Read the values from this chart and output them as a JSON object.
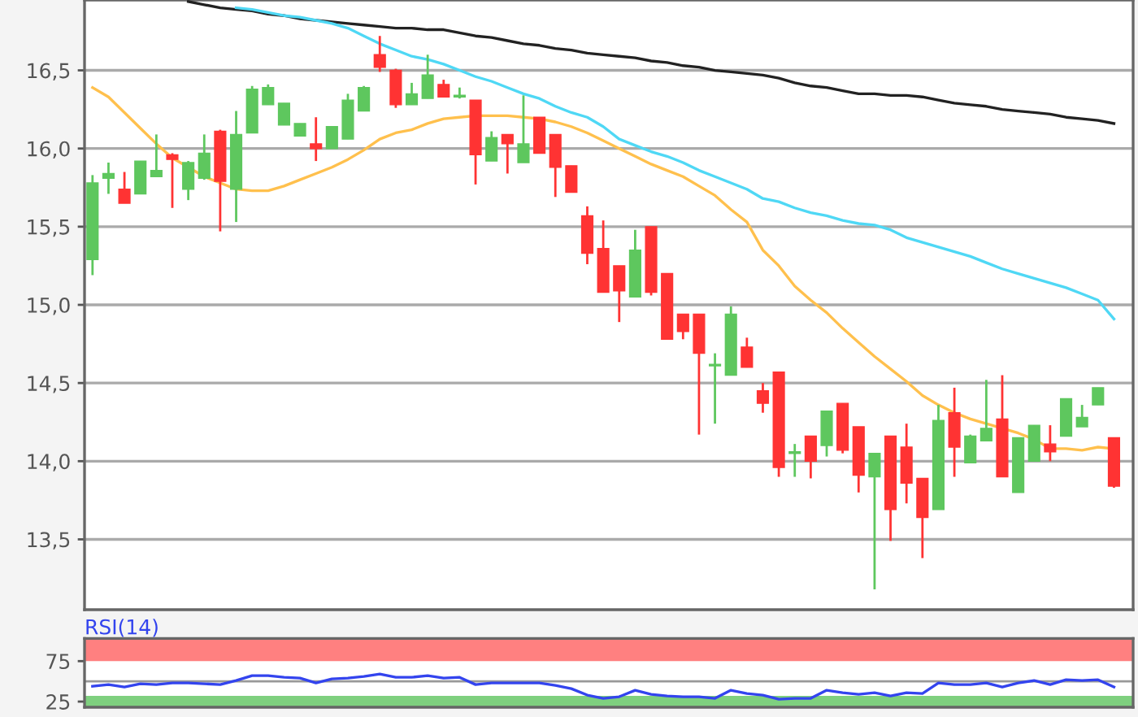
{
  "chart_data": [
    {
      "type": "candlestick",
      "categories": [
        null,
        null,
        null,
        null,
        null,
        null,
        null,
        null,
        null,
        null,
        null,
        null,
        null,
        null,
        null,
        null,
        null,
        null,
        null,
        null,
        null,
        null,
        null,
        null,
        null,
        null,
        null,
        null,
        null,
        null,
        null,
        null,
        null,
        null,
        null,
        null,
        null,
        null,
        null,
        null,
        null,
        null,
        null,
        null,
        null,
        null,
        null,
        null,
        null,
        null,
        null,
        null,
        null,
        null,
        null,
        null,
        null,
        null,
        null,
        null,
        null,
        null,
        null,
        null,
        null
      ],
      "ylim": [
        13.05,
        16.95
      ],
      "yticks": [
        {
          "value": 13.5,
          "label": "13,5"
        },
        {
          "value": 14.0,
          "label": "14,0"
        },
        {
          "value": 14.5,
          "label": "14,5"
        },
        {
          "value": 15.0,
          "label": "15,0"
        },
        {
          "value": 15.5,
          "label": "15,5"
        },
        {
          "value": 16.0,
          "label": "16,0"
        },
        {
          "value": 16.5,
          "label": "16,5"
        }
      ],
      "grid": "y",
      "tick_labels": "y",
      "series": [
        {
          "type": "line",
          "color": "#222222",
          "values": [
            null,
            null,
            null,
            null,
            null,
            null,
            16.94,
            16.92,
            16.9,
            16.89,
            16.88,
            16.86,
            16.85,
            16.83,
            16.82,
            16.81,
            16.8,
            16.79,
            16.78,
            16.77,
            16.77,
            16.76,
            16.76,
            16.74,
            16.72,
            16.71,
            16.69,
            16.67,
            16.66,
            16.64,
            16.63,
            16.61,
            16.6,
            16.59,
            16.58,
            16.56,
            16.55,
            16.53,
            16.52,
            16.5,
            16.49,
            16.48,
            16.47,
            16.45,
            16.42,
            16.4,
            16.39,
            16.37,
            16.35,
            16.35,
            16.34,
            16.34,
            16.33,
            16.31,
            16.29,
            16.28,
            16.27,
            16.25,
            16.24,
            16.23,
            16.22,
            16.2,
            16.19,
            16.18,
            16.16
          ]
        },
        {
          "type": "line",
          "color": "#4fd8f5",
          "values": [
            null,
            null,
            null,
            null,
            null,
            null,
            null,
            null,
            null,
            16.9,
            16.89,
            16.87,
            16.85,
            16.84,
            16.82,
            16.8,
            16.77,
            16.72,
            16.67,
            16.63,
            16.59,
            16.57,
            16.54,
            16.5,
            16.46,
            16.43,
            16.39,
            16.35,
            16.32,
            16.27,
            16.23,
            16.2,
            16.14,
            16.06,
            16.02,
            15.98,
            15.95,
            15.91,
            15.86,
            15.82,
            15.78,
            15.74,
            15.68,
            15.66,
            15.62,
            15.59,
            15.57,
            15.54,
            15.52,
            15.51,
            15.48,
            15.43,
            15.4,
            15.37,
            15.34,
            15.31,
            15.27,
            15.23,
            15.2,
            15.17,
            15.14,
            15.11,
            15.07,
            15.03,
            14.91
          ]
        },
        {
          "type": "line",
          "color": "#ffc04d",
          "values": [
            16.39,
            16.33,
            16.23,
            16.13,
            16.03,
            15.94,
            15.88,
            15.82,
            15.78,
            15.74,
            15.73,
            15.73,
            15.76,
            15.8,
            15.84,
            15.88,
            15.93,
            15.99,
            16.06,
            16.1,
            16.12,
            16.16,
            16.19,
            16.2,
            16.21,
            16.21,
            16.21,
            16.2,
            16.19,
            16.17,
            16.14,
            16.1,
            16.05,
            16.0,
            15.95,
            15.9,
            15.86,
            15.82,
            15.76,
            15.7,
            15.61,
            15.53,
            15.35,
            15.25,
            15.12,
            15.03,
            14.95,
            14.85,
            14.76,
            14.67,
            14.59,
            14.51,
            14.42,
            14.36,
            14.31,
            14.27,
            14.24,
            14.21,
            14.18,
            14.14,
            14.08,
            14.08,
            14.07,
            14.09,
            14.08
          ]
        },
        {
          "ohlc": [
            [
              15.29,
              15.83,
              15.19,
              15.78
            ],
            [
              15.81,
              15.91,
              15.71,
              15.84
            ],
            [
              15.74,
              15.85,
              15.65,
              15.65
            ],
            [
              15.71,
              15.92,
              15.71,
              15.92
            ],
            [
              15.82,
              16.09,
              15.82,
              15.86
            ],
            [
              15.96,
              15.97,
              15.62,
              15.93
            ],
            [
              15.74,
              15.92,
              15.67,
              15.91
            ],
            [
              15.81,
              16.09,
              15.8,
              15.97
            ],
            [
              16.11,
              16.12,
              15.47,
              15.79
            ],
            [
              15.74,
              16.24,
              15.53,
              16.09
            ],
            [
              16.1,
              16.4,
              16.1,
              16.38
            ],
            [
              16.28,
              16.41,
              16.28,
              16.39
            ],
            [
              16.15,
              16.29,
              16.15,
              16.29
            ],
            [
              16.08,
              16.16,
              16.08,
              16.16
            ],
            [
              16.03,
              16.2,
              15.92,
              16.0
            ],
            [
              16.0,
              16.14,
              16.0,
              16.14
            ],
            [
              16.06,
              16.35,
              16.06,
              16.31
            ],
            [
              16.24,
              16.4,
              16.24,
              16.39
            ],
            [
              16.6,
              16.72,
              16.49,
              16.52
            ],
            [
              16.5,
              16.51,
              16.26,
              16.28
            ],
            [
              16.28,
              16.42,
              16.28,
              16.35
            ],
            [
              16.32,
              16.6,
              16.32,
              16.47
            ],
            [
              16.41,
              16.44,
              16.33,
              16.33
            ],
            [
              16.33,
              16.39,
              16.32,
              16.34
            ],
            [
              16.31,
              16.31,
              15.77,
              15.96
            ],
            [
              15.92,
              16.11,
              15.92,
              16.07
            ],
            [
              16.09,
              16.09,
              15.84,
              16.03
            ],
            [
              15.91,
              16.34,
              15.91,
              16.03
            ],
            [
              16.2,
              16.2,
              15.97,
              15.97
            ],
            [
              16.09,
              16.09,
              15.69,
              15.88
            ],
            [
              15.89,
              15.89,
              15.72,
              15.72
            ],
            [
              15.57,
              15.63,
              15.26,
              15.33
            ],
            [
              15.36,
              15.54,
              15.08,
              15.08
            ],
            [
              15.25,
              15.25,
              14.89,
              15.09
            ],
            [
              15.05,
              15.48,
              15.05,
              15.35
            ],
            [
              15.5,
              15.5,
              15.06,
              15.08
            ],
            [
              15.2,
              15.2,
              14.78,
              14.78
            ],
            [
              14.94,
              14.94,
              14.78,
              14.83
            ],
            [
              14.94,
              14.94,
              14.17,
              14.69
            ],
            [
              14.61,
              14.69,
              14.24,
              14.62
            ],
            [
              14.55,
              14.99,
              14.55,
              14.94
            ],
            [
              14.73,
              14.79,
              14.6,
              14.6
            ],
            [
              14.45,
              14.5,
              14.31,
              14.37
            ],
            [
              14.57,
              14.57,
              13.9,
              13.96
            ],
            [
              14.05,
              14.11,
              13.9,
              14.06
            ],
            [
              14.16,
              14.16,
              13.89,
              14.0
            ],
            [
              14.1,
              14.32,
              14.03,
              14.32
            ],
            [
              14.37,
              14.37,
              14.05,
              14.07
            ],
            [
              14.22,
              14.22,
              13.8,
              13.91
            ],
            [
              13.9,
              14.05,
              13.18,
              14.05
            ],
            [
              14.16,
              14.16,
              13.49,
              13.69
            ],
            [
              14.09,
              14.24,
              13.73,
              13.86
            ],
            [
              13.89,
              13.89,
              13.38,
              13.64
            ],
            [
              13.69,
              14.36,
              13.69,
              14.26
            ],
            [
              14.31,
              14.47,
              13.9,
              14.09
            ],
            [
              13.99,
              14.17,
              13.99,
              14.16
            ],
            [
              14.13,
              14.52,
              14.13,
              14.21
            ],
            [
              14.27,
              14.55,
              13.9,
              13.9
            ],
            [
              13.8,
              14.15,
              13.8,
              14.15
            ],
            [
              14.0,
              14.23,
              14.0,
              14.23
            ],
            [
              14.11,
              14.23,
              14.0,
              14.06
            ],
            [
              14.16,
              14.4,
              14.16,
              14.4
            ],
            [
              14.22,
              14.36,
              14.22,
              14.28
            ],
            [
              14.36,
              14.47,
              14.36,
              14.47
            ],
            [
              14.15,
              14.15,
              13.83,
              13.84
            ]
          ],
          "colors": [
            "#5ec75e",
            "#5ec75e",
            "#ff3333",
            "#5ec75e",
            "#5ec75e",
            "#ff3333",
            "#5ec75e",
            "#5ec75e",
            "#ff3333",
            "#5ec75e",
            "#5ec75e",
            "#5ec75e",
            "#5ec75e",
            "#5ec75e",
            "#ff3333",
            "#5ec75e",
            "#5ec75e",
            "#5ec75e",
            "#ff3333",
            "#ff3333",
            "#5ec75e",
            "#5ec75e",
            "#ff3333",
            "#5ec75e",
            "#ff3333",
            "#5ec75e",
            "#ff3333",
            "#5ec75e",
            "#ff3333",
            "#ff3333",
            "#ff3333",
            "#ff3333",
            "#ff3333",
            "#ff3333",
            "#5ec75e",
            "#ff3333",
            "#ff3333",
            "#ff3333",
            "#ff3333",
            "#5ec75e",
            "#5ec75e",
            "#ff3333",
            "#ff3333",
            "#ff3333",
            "#5ec75e",
            "#ff3333",
            "#5ec75e",
            "#ff3333",
            "#ff3333",
            "#5ec75e",
            "#ff3333",
            "#ff3333",
            "#ff3333",
            "#5ec75e",
            "#ff3333",
            "#5ec75e",
            "#5ec75e",
            "#ff3333",
            "#5ec75e",
            "#5ec75e",
            "#ff3333",
            "#5ec75e",
            "#5ec75e",
            "#5ec75e",
            "#ff3333"
          ]
        }
      ]
    },
    {
      "type": "line",
      "title": "RSI(14)",
      "categories": [
        null,
        null,
        null,
        null,
        null,
        null,
        null,
        null,
        null,
        null,
        null,
        null,
        null,
        null,
        null,
        null,
        null,
        null,
        null,
        null,
        null,
        null,
        null,
        null,
        null,
        null,
        null,
        null,
        null,
        null,
        null,
        null,
        null,
        null,
        null,
        null,
        null,
        null,
        null,
        null,
        null,
        null,
        null,
        null,
        null,
        null,
        null,
        null,
        null,
        null,
        null,
        null,
        null,
        null,
        null,
        null,
        null,
        null,
        null,
        null,
        null,
        null,
        null,
        null,
        null
      ],
      "ylim": [
        18,
        103
      ],
      "yticks": [
        25,
        75
      ],
      "grid": false,
      "tick_labels": "y",
      "bands": [
        {
          "axis": "y",
          "from": 75,
          "to": 103,
          "color": "#ff8080"
        },
        {
          "axis": "y",
          "from": 18,
          "to": 32,
          "color": "#7fd07f"
        }
      ],
      "ref_lines": [
        {
          "axis": "y",
          "value": 50,
          "color": "#999999"
        }
      ],
      "series": [
        {
          "color": "#3344ee",
          "values": [
            44,
            46,
            43,
            47,
            46,
            48,
            48,
            47,
            46,
            51,
            57,
            57,
            55,
            54,
            48,
            53,
            54,
            56,
            59,
            55,
            55,
            57,
            54,
            55,
            46,
            48,
            48,
            48,
            48,
            45,
            41,
            33,
            29,
            31,
            39,
            34,
            32,
            31,
            31,
            29,
            39,
            35,
            33,
            28,
            29,
            29,
            39,
            36,
            34,
            36,
            32,
            36,
            35,
            48,
            46,
            46,
            48,
            43,
            48,
            51,
            46,
            52,
            51,
            52,
            43
          ]
        }
      ]
    }
  ]
}
